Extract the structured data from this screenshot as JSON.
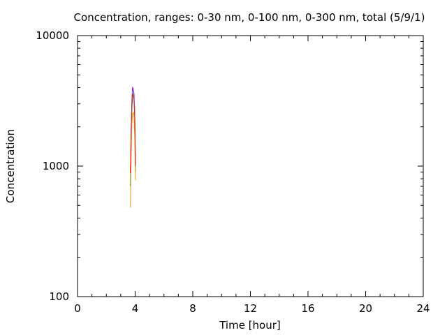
{
  "chart_data": {
    "type": "line",
    "title": "Concentration, ranges: 0-30 nm, 0-100 nm, 0-300 nm, total (5/9/1)",
    "xlabel": "Time [hour]",
    "ylabel": "Concentration",
    "xlim": [
      0,
      24
    ],
    "ylim": [
      100,
      10000
    ],
    "yscale": "log",
    "grid": false,
    "x_ticks": [
      0,
      4,
      8,
      12,
      16,
      20,
      24
    ],
    "x_tick_labels": [
      "0",
      "4",
      "8",
      "12",
      "16",
      "20",
      "24"
    ],
    "y_ticks": [
      100,
      1000,
      10000
    ],
    "y_tick_labels": [
      "100",
      "1000",
      "10000"
    ],
    "series": [
      {
        "color": "#9400d3",
        "x": [
          3.67,
          3.72,
          3.77,
          3.82,
          3.87,
          3.92,
          3.97,
          4.02
        ],
        "y": [
          900,
          1800,
          3200,
          4000,
          3900,
          3600,
          2600,
          1050
        ]
      },
      {
        "color": "#009e73",
        "x": [
          3.67,
          3.72,
          3.77,
          3.82,
          3.87,
          3.92,
          3.97,
          4.02
        ],
        "y": [
          700,
          1400,
          2600,
          3400,
          3500,
          3200,
          2300,
          900
        ]
      },
      {
        "color": "#56b4e9",
        "x": [
          3.67,
          3.72,
          3.77,
          3.82,
          3.87,
          3.92,
          3.97,
          4.02
        ],
        "y": [
          800,
          1700,
          3000,
          3700,
          3700,
          3300,
          2800,
          1000
        ]
      },
      {
        "color": "#e69f00",
        "x": [
          3.67,
          3.72,
          3.77,
          3.82,
          3.87,
          3.92,
          3.97,
          4.02
        ],
        "y": [
          480,
          1100,
          2100,
          2500,
          2600,
          2400,
          1700,
          780
        ]
      },
      {
        "color": "#e51e10",
        "x": [
          3.67,
          3.72,
          3.77,
          3.82,
          3.87,
          3.92,
          3.97,
          4.02
        ],
        "y": [
          880,
          1750,
          2900,
          3600,
          3500,
          3250,
          2500,
          1000
        ]
      }
    ]
  }
}
